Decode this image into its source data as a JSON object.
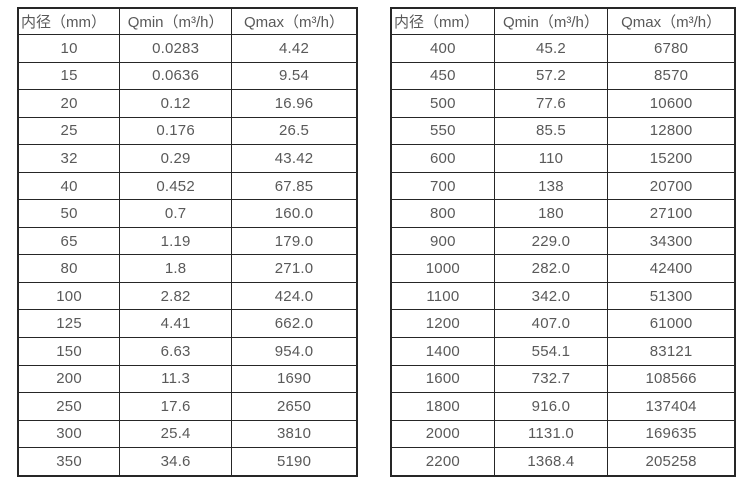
{
  "page": {
    "background_color": "#ffffff",
    "text_color": "#595959",
    "border_color": "#262626"
  },
  "tables": [
    {
      "name": "flow-spec-table-small-diameters",
      "headers": [
        "内径（mm）",
        "Qmin（m³/h）",
        "Qmax（m³/h）"
      ],
      "rows": [
        [
          "10",
          "0.0283",
          "4.42"
        ],
        [
          "15",
          "0.0636",
          "9.54"
        ],
        [
          "20",
          "0.12",
          "16.96"
        ],
        [
          "25",
          "0.176",
          "26.5"
        ],
        [
          "32",
          "0.29",
          "43.42"
        ],
        [
          "40",
          "0.452",
          "67.85"
        ],
        [
          "50",
          "0.7",
          "160.0"
        ],
        [
          "65",
          "1.19",
          "179.0"
        ],
        [
          "80",
          "1.8",
          "271.0"
        ],
        [
          "100",
          "2.82",
          "424.0"
        ],
        [
          "125",
          "4.41",
          "662.0"
        ],
        [
          "150",
          "6.63",
          "954.0"
        ],
        [
          "200",
          "11.3",
          "1690"
        ],
        [
          "250",
          "17.6",
          "2650"
        ],
        [
          "300",
          "25.4",
          "3810"
        ],
        [
          "350",
          "34.6",
          "5190"
        ]
      ]
    },
    {
      "name": "flow-spec-table-large-diameters",
      "headers": [
        "内径（mm）",
        "Qmin（m³/h）",
        "Qmax（m³/h）"
      ],
      "rows": [
        [
          "400",
          "45.2",
          "6780"
        ],
        [
          "450",
          "57.2",
          "8570"
        ],
        [
          "500",
          "77.6",
          "10600"
        ],
        [
          "550",
          "85.5",
          "12800"
        ],
        [
          "600",
          "110",
          "15200"
        ],
        [
          "700",
          "138",
          "20700"
        ],
        [
          "800",
          "180",
          "27100"
        ],
        [
          "900",
          "229.0",
          "34300"
        ],
        [
          "1000",
          "282.0",
          "42400"
        ],
        [
          "1100",
          "342.0",
          "51300"
        ],
        [
          "1200",
          "407.0",
          "61000"
        ],
        [
          "1400",
          "554.1",
          "83121"
        ],
        [
          "1600",
          "732.7",
          "108566"
        ],
        [
          "1800",
          "916.0",
          "137404"
        ],
        [
          "2000",
          "1131.0",
          "169635"
        ],
        [
          "2200",
          "1368.4",
          "205258"
        ]
      ]
    }
  ]
}
